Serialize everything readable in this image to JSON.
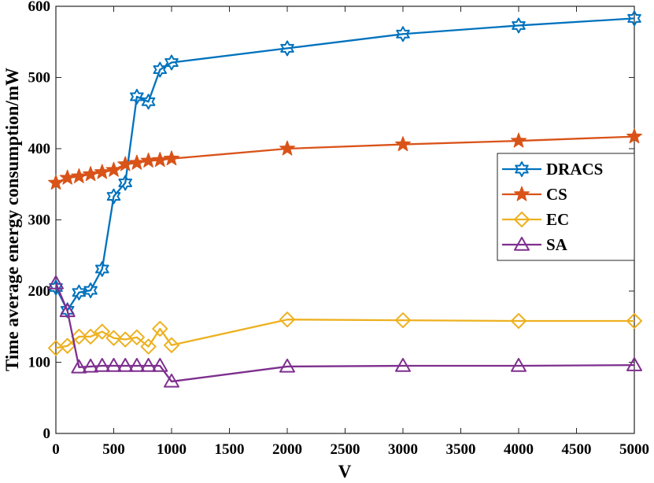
{
  "chart_data": {
    "type": "line",
    "title": "",
    "xlabel": "V",
    "ylabel": "Time average energy consumption/mW",
    "xlim": [
      0,
      5000
    ],
    "ylim": [
      0,
      600
    ],
    "xticks": [
      0,
      500,
      1000,
      1500,
      2000,
      2500,
      3000,
      3500,
      4000,
      4500,
      5000
    ],
    "yticks": [
      0,
      100,
      200,
      300,
      400,
      500,
      600
    ],
    "grid": false,
    "legend_position": "center-right",
    "x": [
      0,
      100,
      200,
      300,
      400,
      500,
      600,
      700,
      800,
      900,
      1000,
      2000,
      3000,
      4000,
      5000
    ],
    "series": [
      {
        "name": "DRACS",
        "color": "#0072BD",
        "marker": "hexagram",
        "values": [
          205,
          173,
          198,
          201,
          231,
          333,
          352,
          473,
          466,
          511,
          521,
          541,
          561,
          573,
          583
        ]
      },
      {
        "name": "CS",
        "color": "#D95319",
        "marker": "pentagram",
        "values": [
          352,
          359,
          361,
          364,
          367,
          370,
          378,
          380,
          383,
          384,
          386,
          400,
          406,
          411,
          417
        ]
      },
      {
        "name": "EC",
        "color": "#EDB120",
        "marker": "diamond",
        "values": [
          120,
          123,
          136,
          136,
          143,
          134,
          132,
          135,
          122,
          147,
          124,
          160,
          159,
          158,
          158
        ]
      },
      {
        "name": "SA",
        "color": "#7E2F8E",
        "marker": "triangle",
        "values": [
          211,
          172,
          93,
          94,
          95,
          95,
          95,
          95,
          95,
          95,
          73,
          94,
          95,
          95,
          96
        ]
      }
    ]
  }
}
